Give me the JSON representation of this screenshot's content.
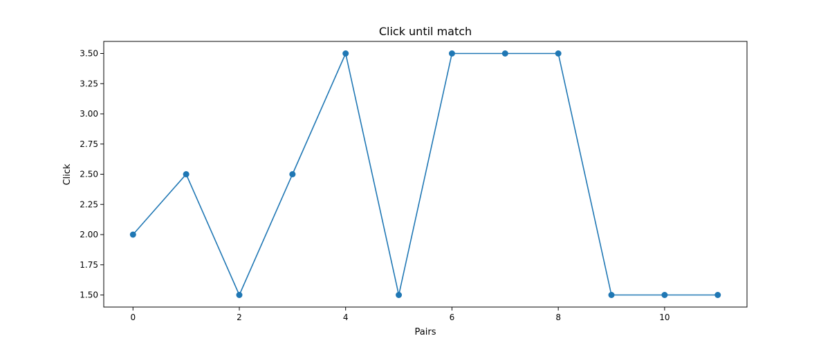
{
  "chart_data": {
    "type": "line",
    "title": "Click until match",
    "xlabel": "Pairs",
    "ylabel": "Click",
    "x": [
      0,
      1,
      2,
      3,
      4,
      5,
      6,
      7,
      8,
      9,
      10,
      11
    ],
    "series": [
      {
        "values": [
          2.0,
          2.5,
          1.5,
          2.5,
          3.5,
          1.5,
          3.5,
          3.5,
          3.5,
          1.5,
          1.5,
          1.5
        ],
        "color": "#1f77b4",
        "marker": "circle"
      }
    ],
    "xlim": [
      -0.55,
      11.55
    ],
    "ylim": [
      1.4,
      3.6
    ],
    "xticks": [
      0,
      2,
      4,
      6,
      8,
      10
    ],
    "xtick_labels": [
      "0",
      "2",
      "4",
      "6",
      "8",
      "10"
    ],
    "yticks": [
      1.5,
      1.75,
      2.0,
      2.25,
      2.5,
      2.75,
      3.0,
      3.25,
      3.5
    ],
    "ytick_labels": [
      "1.50",
      "1.75",
      "2.00",
      "2.25",
      "2.50",
      "2.75",
      "3.00",
      "3.25",
      "3.50"
    ],
    "grid": false,
    "legend": "none"
  }
}
